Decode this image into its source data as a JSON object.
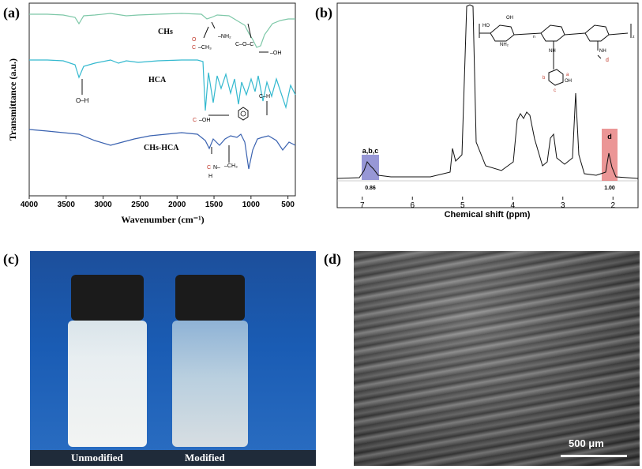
{
  "panel_labels": {
    "a": "(a)",
    "b": "(b)",
    "c": "(c)",
    "d": "(d)"
  },
  "chart_data": [
    {
      "type": "line",
      "title": "",
      "xlabel": "Wavenumber (cm⁻¹)",
      "ylabel": "Transmittance (a.u.)",
      "xlim": [
        4000,
        400
      ],
      "xticks": [
        "4000",
        "3500",
        "3000",
        "2500",
        "2000",
        "1500",
        "1000",
        "500"
      ],
      "series": [
        {
          "name": "CHs",
          "color": "#7ec8a8"
        },
        {
          "name": "HCA",
          "color": "#34b9cf"
        },
        {
          "name": "CHs-HCA",
          "color": "#3a62b0"
        }
      ],
      "annotations": [
        "O–H",
        "–NH₂",
        "C–O–C",
        "–OH",
        "C–H",
        "–CH₃"
      ],
      "group_labels": {
        "amide_o": "O",
        "amide_c": "C",
        "amide_r": "–CH₃",
        "acid_c": "C",
        "acid_r": "–OH",
        "amide2_c": "C",
        "amide2_r": "N–",
        "amide2_h": "H"
      }
    },
    {
      "type": "line",
      "title": "",
      "xlabel": "Chemical shift (ppm)",
      "ylabel": "",
      "xlim": [
        7.5,
        1.5
      ],
      "xticks": [
        "7",
        "6",
        "5",
        "4",
        "3",
        "2"
      ],
      "peaks": [
        {
          "label": "a,b,c",
          "integral": "0.86",
          "color": "#6b6bc4"
        },
        {
          "label": "d",
          "integral": "1.00",
          "color": "#e26a6a"
        }
      ],
      "structure_labels": {
        "a": "a",
        "b": "b",
        "c": "c",
        "d": "d",
        "nh2": "NH₂",
        "nh": "NH",
        "oh": "OH",
        "ho": "HO",
        "n1": "n",
        "n2": "z"
      }
    }
  ],
  "photo_c": {
    "left_label": "Unmodified",
    "right_label": "Modified"
  },
  "photo_d": {
    "scale_label": "500 μm"
  }
}
